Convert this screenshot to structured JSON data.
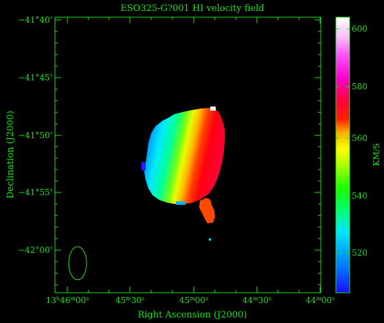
{
  "title": "ESO325-G?001  HI velocity field",
  "axes": {
    "xlabel": "Right Ascension (J2000)",
    "ylabel": "Declination (J2000)",
    "ra_ticks": [
      {
        "h": "13",
        "m": "46",
        "s": "00"
      },
      {
        "h": "",
        "m": "45",
        "s": "30"
      },
      {
        "h": "",
        "m": "45",
        "s": "00"
      },
      {
        "h": "",
        "m": "44",
        "s": "30"
      },
      {
        "h": "",
        "m": "44",
        "s": "00"
      }
    ],
    "dec_ticks": [
      {
        "d": "−41",
        "m": "40"
      },
      {
        "d": "−41",
        "m": "45"
      },
      {
        "d": "−41",
        "m": "50"
      },
      {
        "d": "−41",
        "m": "55"
      },
      {
        "d": "−42",
        "m": "00"
      }
    ]
  },
  "colorbar": {
    "label": "KM/S",
    "ticks": [
      "520",
      "540",
      "560",
      "580",
      "600"
    ],
    "range_kms": [
      505,
      605
    ],
    "colors": [
      "#1a0dff",
      "#00a0ff",
      "#00ffff",
      "#00ff40",
      "#a8ff00",
      "#ffff00",
      "#ffa000",
      "#ff2000",
      "#ff00c0",
      "#ff70ff",
      "#ffffff"
    ]
  },
  "colors": {
    "frame": "#19e619",
    "background": "#000000"
  }
}
